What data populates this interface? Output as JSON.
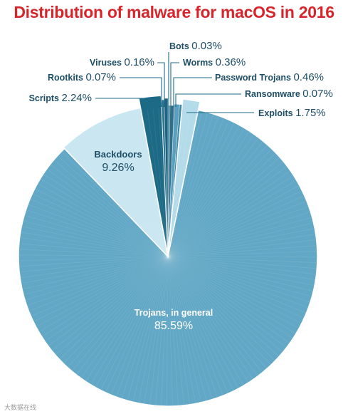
{
  "chart_data": {
    "type": "pie",
    "title": "Distribution of malware for macOS in 2016",
    "unit": "%",
    "slices": [
      {
        "label": "Bots",
        "value": 0.03,
        "value_text": "0.03%",
        "color": "#27738f"
      },
      {
        "label": "Worms",
        "value": 0.36,
        "value_text": "0.36%",
        "color": "#2f6f8a"
      },
      {
        "label": "Password Trojans",
        "value": 0.46,
        "value_text": "0.46%",
        "color": "#5a9fbd"
      },
      {
        "label": "Ransomware",
        "value": 0.07,
        "value_text": "0.07%",
        "color": "#3a86a6"
      },
      {
        "label": "Exploits",
        "value": 1.75,
        "value_text": "1.75%",
        "color": "#b4dbe9"
      },
      {
        "label": "Trojans, in general",
        "value": 85.59,
        "value_text": "85.59%",
        "color": "#62a8c6"
      },
      {
        "label": "Backdoors",
        "value": 9.26,
        "value_text": "9.26%",
        "color": "#c9e6f1"
      },
      {
        "label": "Scripts",
        "value": 2.24,
        "value_text": "2.24%",
        "color": "#1c6a86"
      },
      {
        "label": "Rootkits",
        "value": 0.07,
        "value_text": "0.07%",
        "color": "#2b7592"
      },
      {
        "label": "Viruses",
        "value": 0.16,
        "value_text": "0.16%",
        "color": "#1f6380"
      }
    ],
    "label_color": "#1d4e66",
    "leader_color": "#1d6b88",
    "start_angle": "12 o'clock",
    "direction": "clockwise"
  },
  "watermark": "大数据在线"
}
